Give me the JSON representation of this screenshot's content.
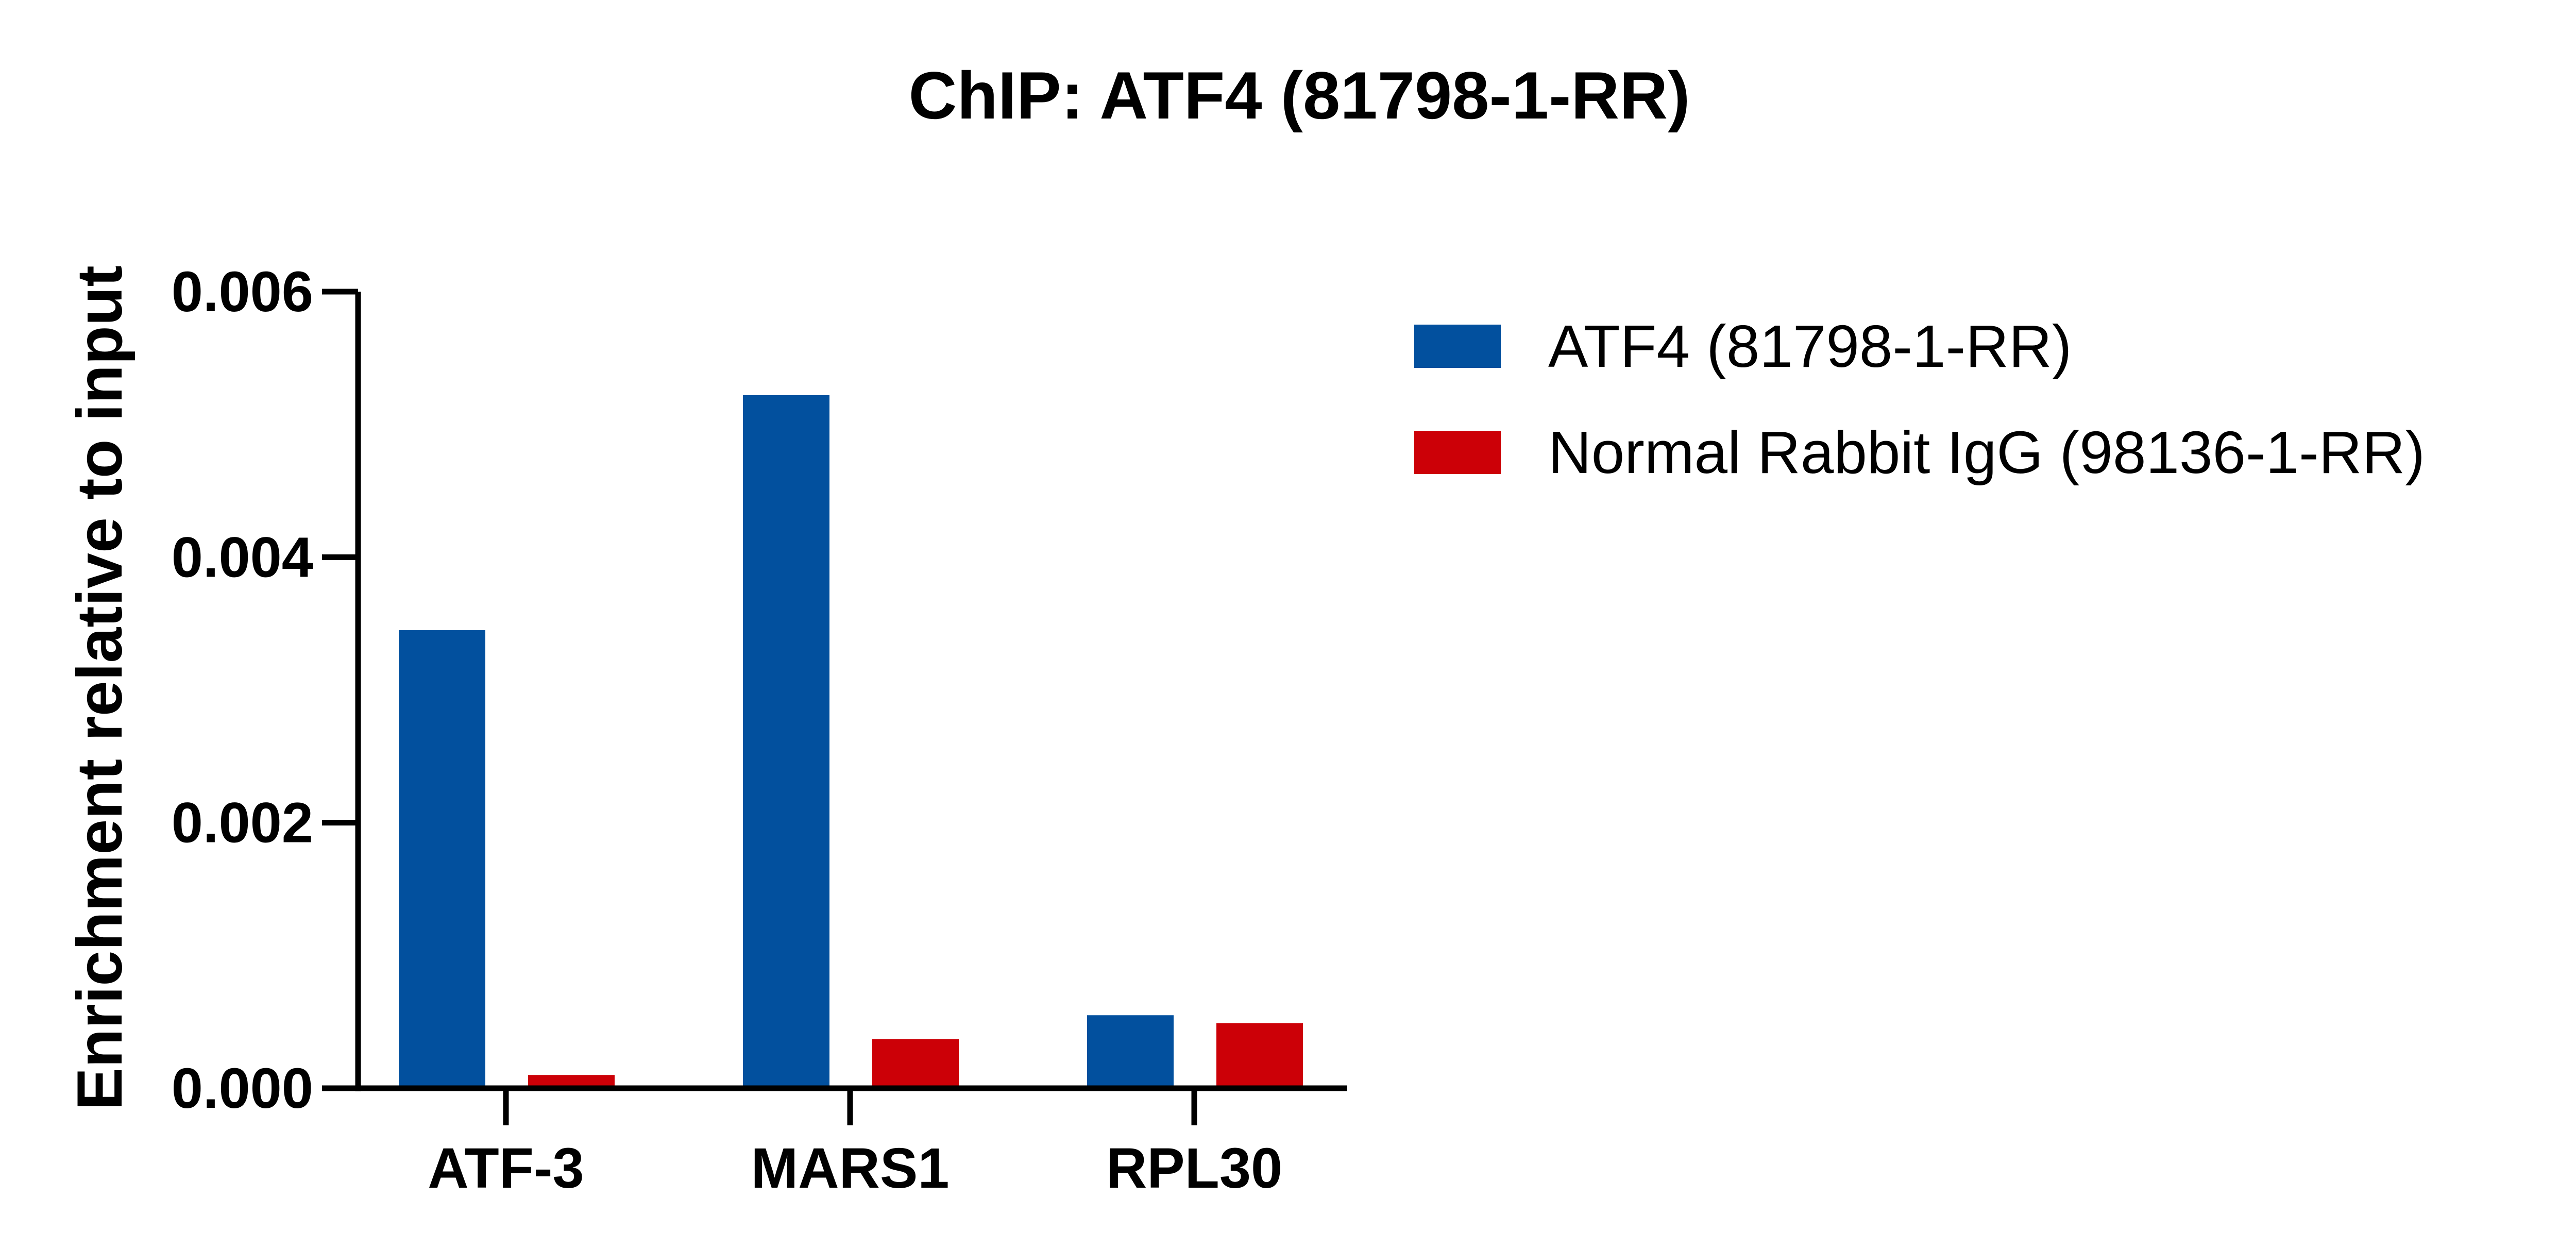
{
  "chart_data": {
    "type": "bar",
    "title": "ChIP: ATF4 (81798-1-RR)",
    "xlabel": "",
    "ylabel": "Enrichment relative to input",
    "categories": [
      "ATF-3",
      "MARS1",
      "RPL30"
    ],
    "series": [
      {
        "name": "ATF4 (81798-1-RR)",
        "color": "#02509E",
        "values": [
          0.00345,
          0.00522,
          0.00055
        ]
      },
      {
        "name": "Normal Rabbit IgG (98136-1-RR)",
        "color": "#CC0007",
        "values": [
          0.0001,
          0.00037,
          0.00049
        ]
      }
    ],
    "ylim": [
      0,
      0.006
    ],
    "yticks": [
      0,
      0.002,
      0.004,
      0.006
    ],
    "ytick_labels": [
      "0.000",
      "0.002",
      "0.004",
      "0.006"
    ],
    "grid": false,
    "legend_position": "right"
  }
}
